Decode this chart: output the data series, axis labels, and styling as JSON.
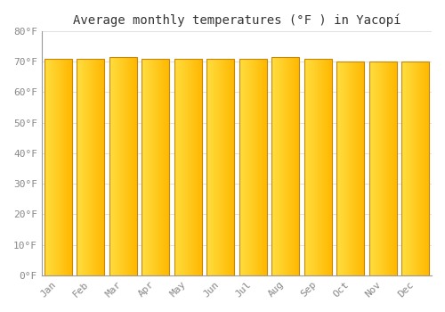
{
  "title": "Average monthly temperatures (°F ) in Yacopí",
  "months": [
    "Jan",
    "Feb",
    "Mar",
    "Apr",
    "May",
    "Jun",
    "Jul",
    "Aug",
    "Sep",
    "Oct",
    "Nov",
    "Dec"
  ],
  "values": [
    71,
    71,
    71.5,
    71,
    71,
    71,
    71,
    71.5,
    71,
    70,
    70,
    70
  ],
  "ylim": [
    0,
    80
  ],
  "yticks": [
    0,
    10,
    20,
    30,
    40,
    50,
    60,
    70,
    80
  ],
  "ytick_labels": [
    "0°F",
    "10°F",
    "20°F",
    "30°F",
    "40°F",
    "50°F",
    "60°F",
    "70°F",
    "80°F"
  ],
  "bar_color_left": "#FFD966",
  "bar_color_right": "#F5A623",
  "bar_color_center": "#FFBC2E",
  "bar_edge_color": "#C8860A",
  "background_color": "#FFFFFF",
  "plot_bg_color": "#FFFFFF",
  "grid_color": "#E0E0E0",
  "title_fontsize": 10,
  "tick_fontsize": 8,
  "figsize": [
    5.0,
    3.5
  ],
  "dpi": 100
}
